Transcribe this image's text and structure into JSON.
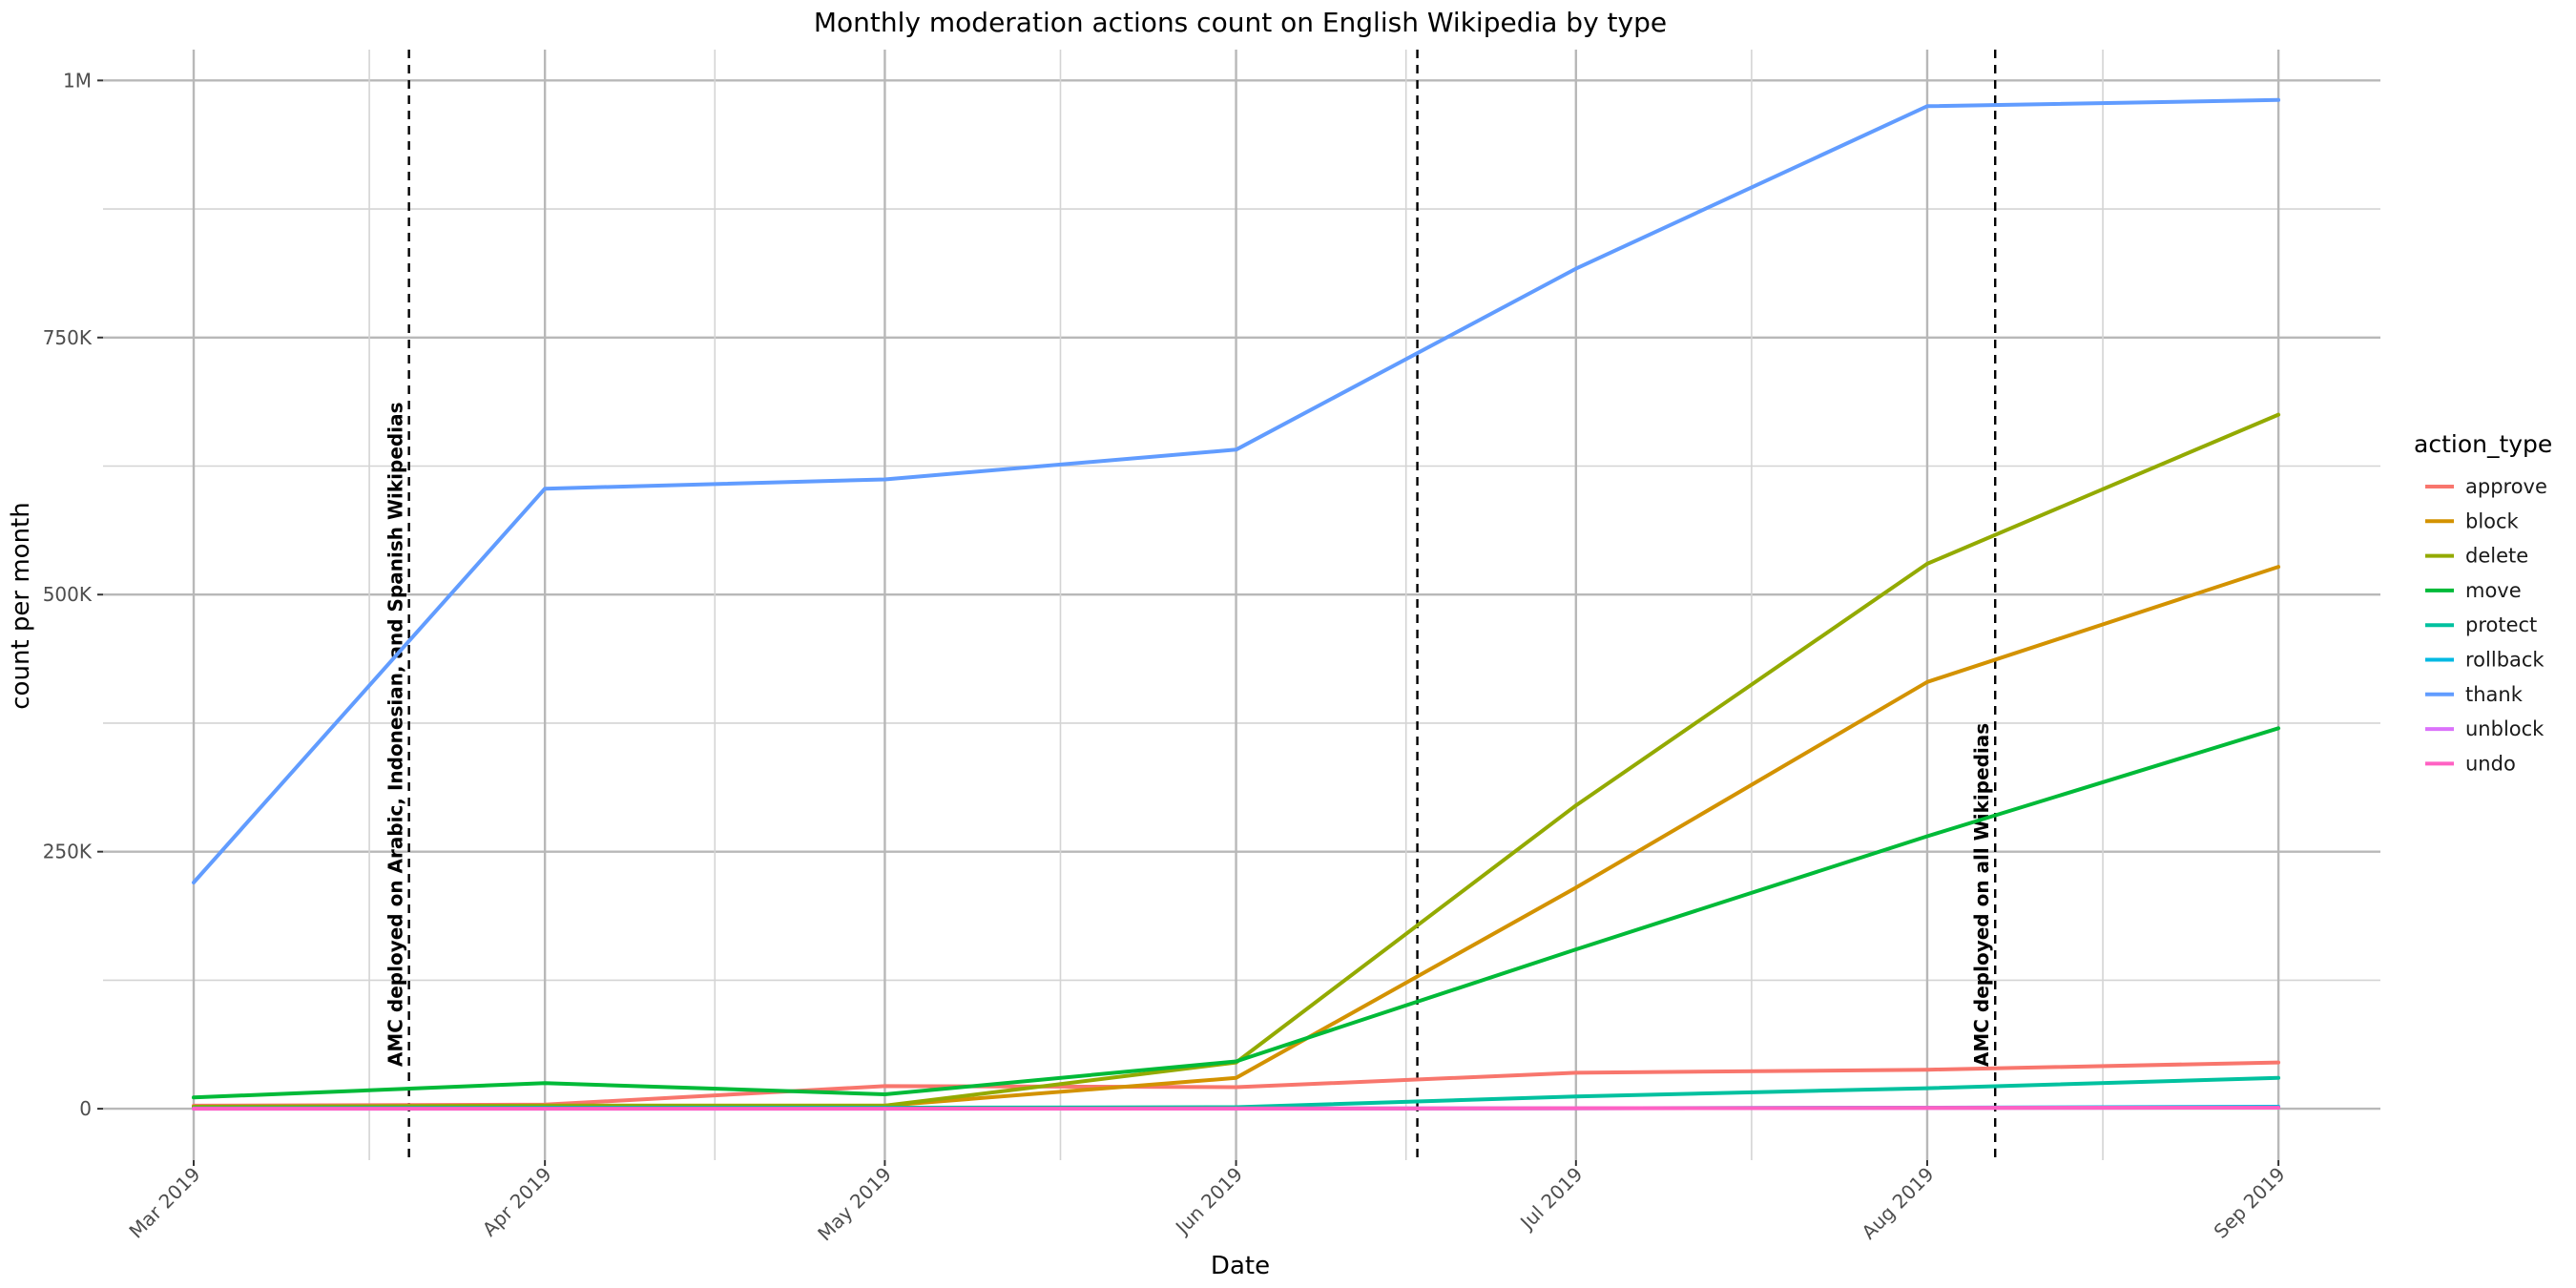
{
  "chart_data": {
    "type": "line",
    "title": "Monthly moderation actions count on English Wikipedia by type",
    "xlabel": "Date",
    "ylabel": "count per month",
    "x": [
      "2019-03-01",
      "2019-04-01",
      "2019-05-01",
      "2019-06-01",
      "2019-07-01",
      "2019-08-01",
      "2019-09-01"
    ],
    "x_tick_labels": [
      "Mar 2019",
      "Apr 2019",
      "May 2019",
      "Jun 2019",
      "Jul 2019",
      "Aug 2019",
      "Sep 2019"
    ],
    "y_ticks": [
      0,
      250000,
      500000,
      750000,
      1000000
    ],
    "y_tick_labels": [
      "0",
      "250K",
      "500K",
      "750K",
      "1M"
    ],
    "xlim": [
      "2019-02-21",
      "2019-09-10"
    ],
    "ylim": [
      -50000,
      1030000
    ],
    "grid": true,
    "legend": {
      "title": "action_type",
      "position": "right"
    },
    "series": [
      {
        "name": "approve",
        "color": "#F8766D",
        "values": [
          3000,
          4000,
          22000,
          21000,
          35000,
          38000,
          45000
        ]
      },
      {
        "name": "block",
        "color": "#D39200",
        "values": [
          2000,
          3000,
          3000,
          30000,
          215000,
          415000,
          527000
        ]
      },
      {
        "name": "delete",
        "color": "#93AA00",
        "values": [
          2000,
          3000,
          3000,
          45000,
          295000,
          530000,
          675000
        ]
      },
      {
        "name": "move",
        "color": "#00BA38",
        "values": [
          11000,
          25000,
          14000,
          46000,
          155000,
          265000,
          370000
        ]
      },
      {
        "name": "protect",
        "color": "#00C19F",
        "values": [
          500,
          1000,
          1000,
          1500,
          12000,
          20000,
          30000
        ]
      },
      {
        "name": "rollback",
        "color": "#00B9E3",
        "values": [
          100,
          100,
          100,
          100,
          500,
          1000,
          2000
        ]
      },
      {
        "name": "thank",
        "color": "#619CFF",
        "values": [
          220000,
          603000,
          612000,
          641000,
          817000,
          975000,
          981000
        ]
      },
      {
        "name": "unblock",
        "color": "#DB72FB",
        "values": [
          50,
          50,
          50,
          100,
          500,
          800,
          1000
        ]
      },
      {
        "name": "undo",
        "color": "#FF61C3",
        "values": [
          100,
          100,
          100,
          200,
          500,
          800,
          1000
        ]
      }
    ],
    "vlines": [
      {
        "date": "2019-03-20",
        "label": "AMC deployed on Arabic, Indonesian, and Spanish Wikipedias"
      },
      {
        "date": "2019-06-17",
        "label": ""
      },
      {
        "date": "2019-08-07",
        "label": "AMC deployed on all Wikipedias"
      }
    ]
  }
}
